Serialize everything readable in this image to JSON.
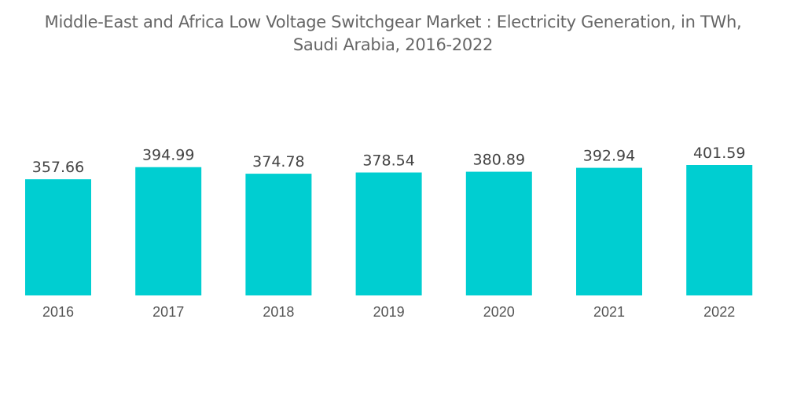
{
  "chart_data": {
    "type": "bar",
    "title": "Middle-East and Africa Low Voltage Switchgear Market : Electricity Generation, in TWh,",
    "subtitle": "Saudi Arabia, 2016-2022",
    "categories": [
      "2016",
      "2017",
      "2018",
      "2019",
      "2020",
      "2021",
      "2022"
    ],
    "values": [
      357.66,
      394.99,
      374.78,
      378.54,
      380.89,
      392.94,
      401.59
    ],
    "value_labels": [
      "357.66",
      "394.99",
      "374.78",
      "378.54",
      "380.89",
      "392.94",
      "401.59"
    ],
    "xlabel": "",
    "ylabel": "",
    "ylim": [
      0,
      401.59
    ],
    "grid": false,
    "legend": "none",
    "bar_color": "#00CED1"
  }
}
